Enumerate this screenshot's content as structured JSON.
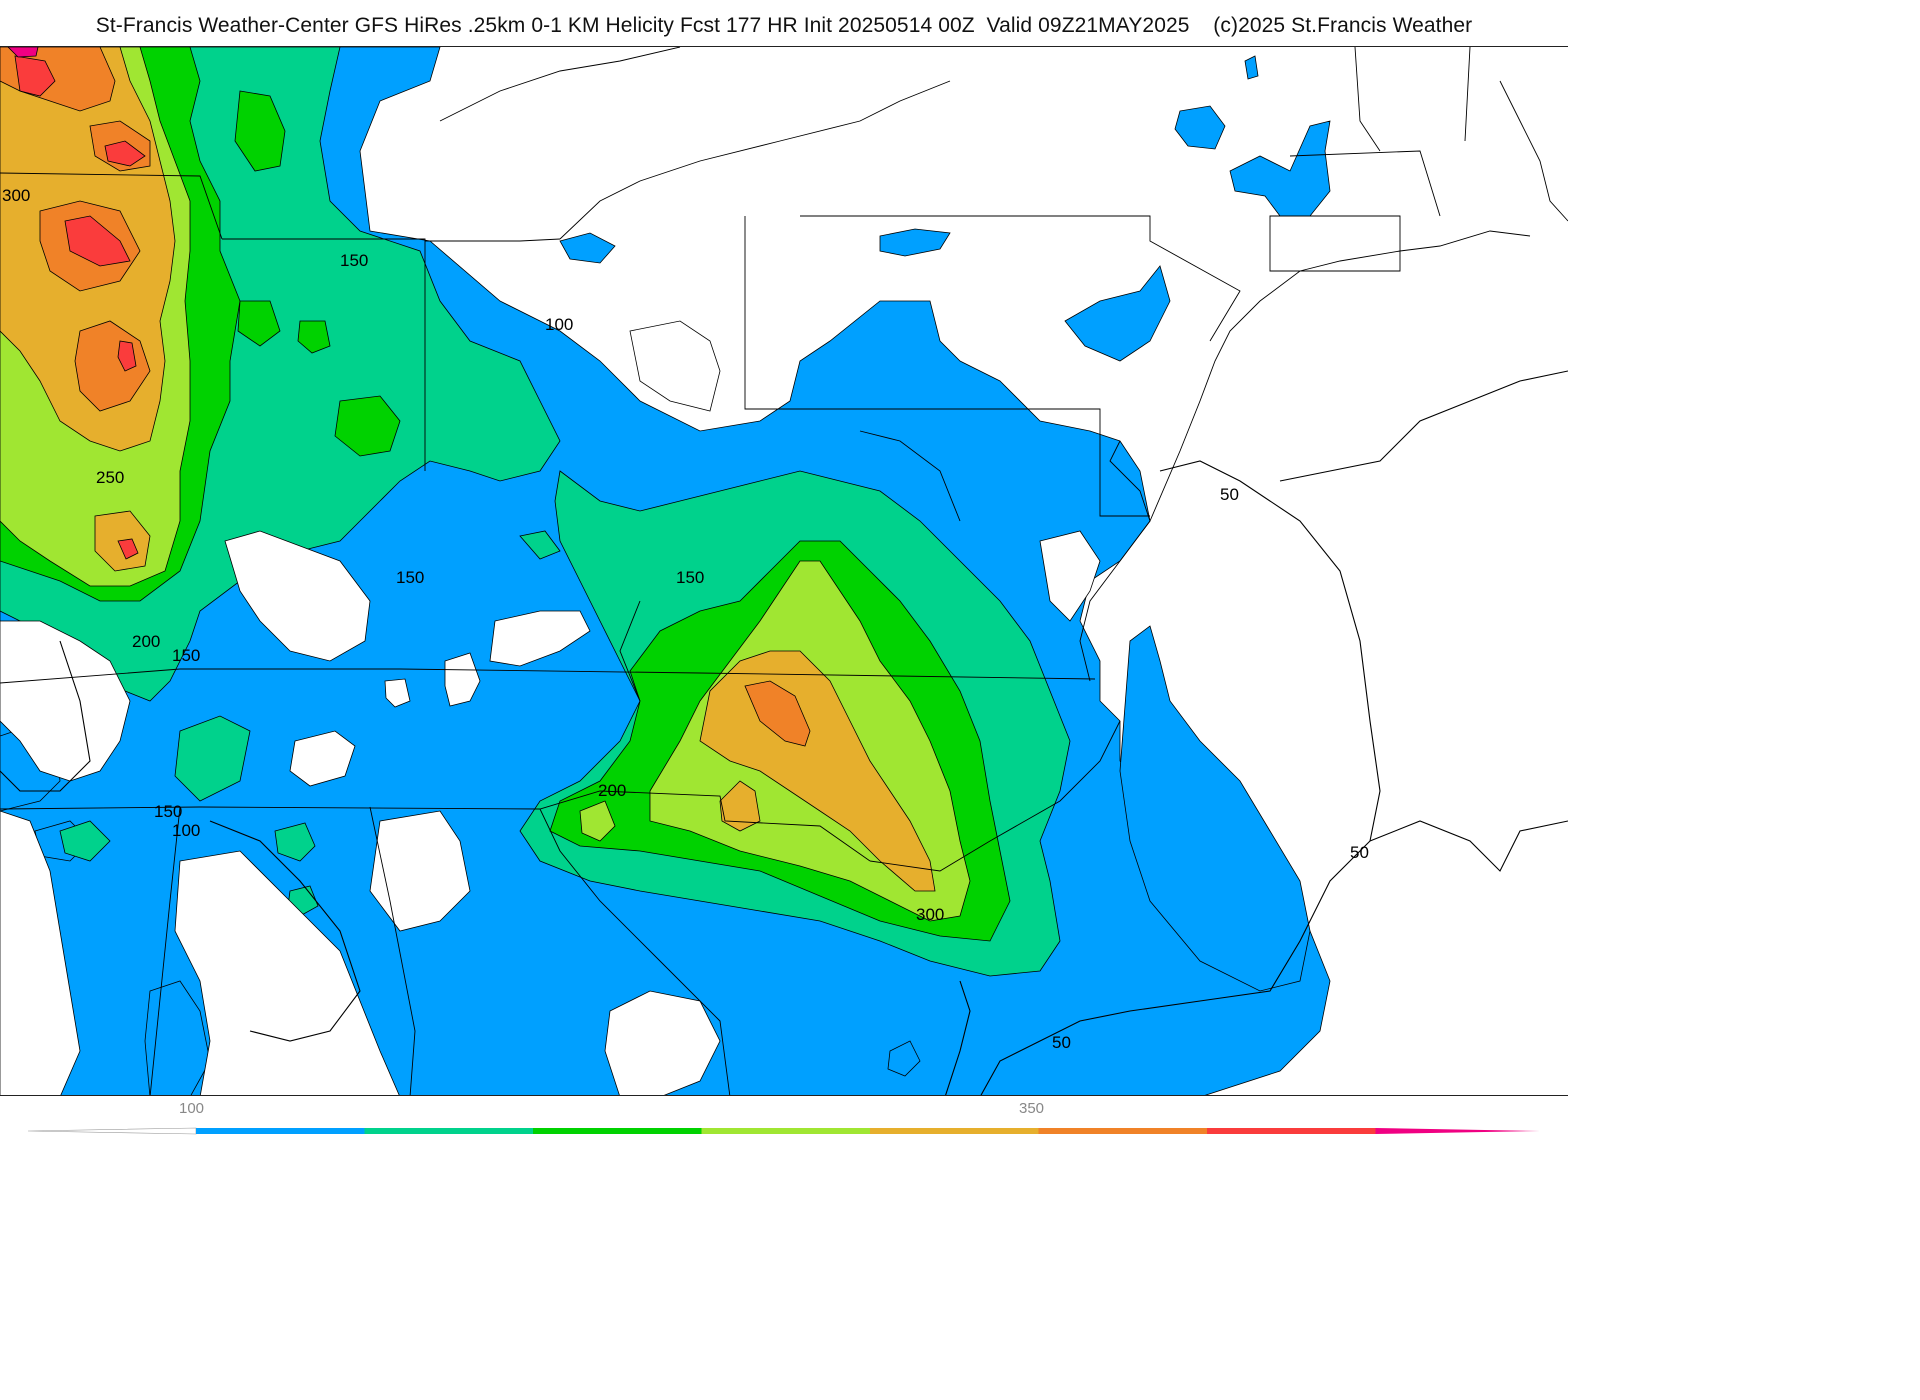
{
  "title": "St-Francis Weather-Center GFS HiRes .25km 0-1 KM Helicity Fcst 177 HR Init 20250514 00Z  Valid 09Z21MAY2025    (c)2025 St.Francis Weather",
  "colors": {
    "c100": "#00a0ff",
    "c150": "#00d28c",
    "c175": "#00d200",
    "c200": "#a0e632",
    "c250": "#e6af2d",
    "c300": "#f08228",
    "c350": "#fa3c3c",
    "c400": "#f00082",
    "background": "#ffffff",
    "contour": "#000000",
    "state_line": "#000000",
    "county_line": "#c0c0c0"
  },
  "contour_labels": [
    {
      "text": "300"
    },
    {
      "text": "150"
    },
    {
      "text": "100"
    },
    {
      "text": "250"
    },
    {
      "text": "150"
    },
    {
      "text": "150"
    },
    {
      "text": "200"
    },
    {
      "text": "150"
    },
    {
      "text": "150"
    },
    {
      "text": "100"
    },
    {
      "text": "200"
    },
    {
      "text": "300"
    },
    {
      "text": "50"
    },
    {
      "text": "50"
    },
    {
      "text": "50"
    }
  ],
  "colorbar": {
    "levels": [
      100,
      150,
      175,
      200,
      250,
      300,
      350,
      400
    ],
    "labels": [
      "100",
      "350"
    ]
  }
}
